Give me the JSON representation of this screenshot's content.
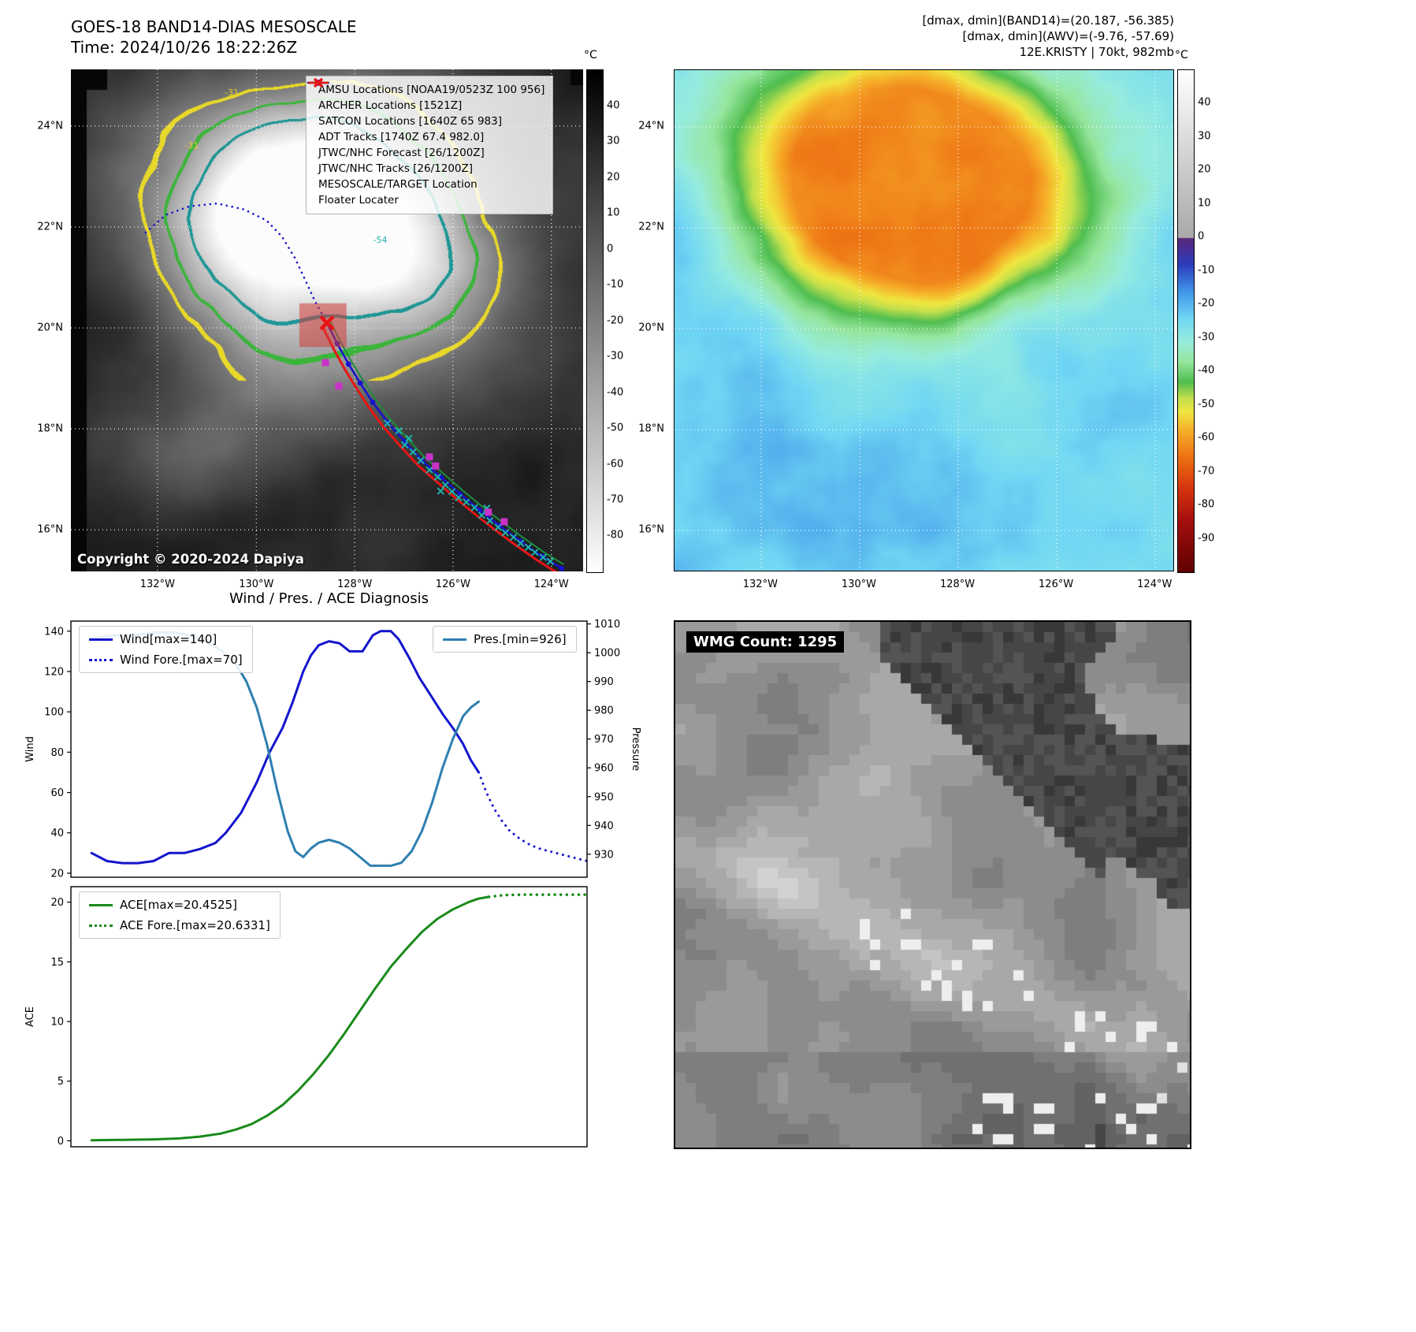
{
  "top_left": {
    "title": "GOES-18 BAND14-DIAS MESOSCALE",
    "subtitle": "Time: 2024/10/26 18:22:26Z",
    "copyright": "Copyright © 2020-2024 Dapiya",
    "colorbar": {
      "unit": "°C",
      "lim": [
        50,
        -90
      ],
      "ticks": [
        40,
        30,
        20,
        10,
        0,
        -10,
        -20,
        -30,
        -40,
        -50,
        -60,
        -70,
        -80
      ]
    },
    "x_ticks": [
      {
        "label": "132°W",
        "f": 0.169
      },
      {
        "label": "130°W",
        "f": 0.362
      },
      {
        "label": "128°W",
        "f": 0.554
      },
      {
        "label": "126°W",
        "f": 0.746
      },
      {
        "label": "124°W",
        "f": 0.938
      }
    ],
    "y_ticks": [
      {
        "label": "24°N",
        "f": 0.113
      },
      {
        "label": "22°N",
        "f": 0.314
      },
      {
        "label": "20°N",
        "f": 0.515
      },
      {
        "label": "18°N",
        "f": 0.716
      },
      {
        "label": "16°N",
        "f": 0.917
      }
    ],
    "legend": [
      {
        "label": "AMSU Locations [NOAA19/0523Z 100 956]",
        "marker": "square",
        "color": "#c832c8"
      },
      {
        "label": "ARCHER Locations [1521Z]",
        "marker": "square",
        "color": "#c832c8"
      },
      {
        "label": "SATCON Locations [1640Z 65 983]",
        "marker": "x",
        "color": "#20b2aa"
      },
      {
        "label": "ADT Tracks [1740Z 67.4 982.0]",
        "marker": "line",
        "color": "#1e8c3c"
      },
      {
        "label": "JTWC/NHC Forecast [26/1200Z]",
        "marker": "dotted",
        "color": "#1414cd"
      },
      {
        "label": "JTWC/NHC Tracks [26/1200Z]",
        "marker": "line-dot",
        "color": "#1414cd"
      },
      {
        "label": "MESOSCALE/TARGET Location",
        "marker": "xmark",
        "color": "#e81414"
      },
      {
        "label": "Floater Locater",
        "marker": "line",
        "color": "#e81414"
      }
    ],
    "contour_labels": [
      {
        "text": "-31",
        "f": [
          0.3,
          0.052
        ],
        "color": "#e0d020"
      },
      {
        "text": "-31",
        "f": [
          0.222,
          0.158
        ],
        "color": "#e0d020"
      },
      {
        "text": "-54",
        "f": [
          0.59,
          0.345
        ],
        "color": "#20b2aa"
      }
    ],
    "tracks": {
      "forecast": [
        [
          0.146,
          0.325
        ],
        [
          0.185,
          0.29
        ],
        [
          0.231,
          0.273
        ],
        [
          0.285,
          0.267
        ],
        [
          0.338,
          0.279
        ],
        [
          0.382,
          0.301
        ],
        [
          0.412,
          0.333
        ],
        [
          0.438,
          0.377
        ],
        [
          0.458,
          0.421
        ],
        [
          0.477,
          0.463
        ],
        [
          0.5,
          0.505
        ]
      ],
      "best_track": [
        [
          0.5,
          0.505
        ],
        [
          0.52,
          0.546
        ],
        [
          0.542,
          0.587
        ],
        [
          0.565,
          0.625
        ],
        [
          0.589,
          0.663
        ],
        [
          0.618,
          0.703
        ],
        [
          0.651,
          0.741
        ],
        [
          0.686,
          0.78
        ],
        [
          0.723,
          0.813
        ],
        [
          0.76,
          0.846
        ],
        [
          0.798,
          0.878
        ],
        [
          0.837,
          0.909
        ],
        [
          0.878,
          0.94
        ],
        [
          0.92,
          0.97
        ],
        [
          0.958,
          0.994
        ]
      ],
      "target": [
        0.5,
        0.505
      ],
      "target_box": [
        0.446,
        0.466,
        0.092,
        0.087
      ],
      "satcon_marks": [
        [
          0.618,
          0.705
        ],
        [
          0.64,
          0.72
        ],
        [
          0.652,
          0.748
        ],
        [
          0.668,
          0.762
        ],
        [
          0.683,
          0.779
        ],
        [
          0.66,
          0.735
        ],
        [
          0.7,
          0.798
        ],
        [
          0.716,
          0.812
        ],
        [
          0.731,
          0.828
        ],
        [
          0.744,
          0.841
        ],
        [
          0.757,
          0.853
        ],
        [
          0.722,
          0.84
        ],
        [
          0.772,
          0.862
        ],
        [
          0.788,
          0.873
        ],
        [
          0.802,
          0.888
        ],
        [
          0.818,
          0.899
        ],
        [
          0.812,
          0.874
        ],
        [
          0.834,
          0.912
        ],
        [
          0.848,
          0.923
        ],
        [
          0.864,
          0.932
        ],
        [
          0.878,
          0.944
        ],
        [
          0.893,
          0.952
        ],
        [
          0.906,
          0.962
        ],
        [
          0.922,
          0.972
        ],
        [
          0.936,
          0.98
        ]
      ],
      "amsu_marks": [
        [
          0.497,
          0.584
        ],
        [
          0.523,
          0.631
        ],
        [
          0.7,
          0.772
        ],
        [
          0.712,
          0.79
        ],
        [
          0.815,
          0.882
        ],
        [
          0.846,
          0.901
        ]
      ]
    }
  },
  "top_right": {
    "header_lines": [
      "[dmax, dmin](BAND14)=(20.187, -56.385)",
      "[dmax, dmin](AWV)=(-9.76, -57.69)",
      "12E.KRISTY | 70kt, 982mb"
    ],
    "colorbar": {
      "unit": "°C",
      "lim": [
        50,
        -100
      ],
      "ticks": [
        40,
        30,
        20,
        10,
        0,
        -10,
        -20,
        -30,
        -40,
        -50,
        -60,
        -70,
        -80,
        -90
      ]
    },
    "x_ticks": [
      {
        "label": "132°W",
        "f": 0.173
      },
      {
        "label": "130°W",
        "f": 0.37
      },
      {
        "label": "128°W",
        "f": 0.567
      },
      {
        "label": "126°W",
        "f": 0.764
      },
      {
        "label": "124°W",
        "f": 0.961
      }
    ],
    "y_ticks": [
      {
        "label": "24°N",
        "f": 0.113
      },
      {
        "label": "22°N",
        "f": 0.314
      },
      {
        "label": "20°N",
        "f": 0.515
      },
      {
        "label": "18°N",
        "f": 0.716
      },
      {
        "label": "16°N",
        "f": 0.917
      }
    ]
  },
  "bottom_left": {
    "title": "Wind / Pres. / ACE Diagnosis"
  },
  "bottom_right": {
    "label": "WMG Count: 1295"
  },
  "colors": {
    "wind": "#1414cd",
    "pressure": "#2e7fb0",
    "ace": "#1a8a1a",
    "floater": "#e81414",
    "adt": "#1e8c3c",
    "satcon": "#20b2aa",
    "amsu": "#c832c8"
  },
  "chart_data": [
    {
      "type": "line",
      "title": "Wind / Pres. / ACE Diagnosis",
      "x_range": [
        0,
        1
      ],
      "axes": {
        "left": {
          "label": "Wind",
          "ticks": [
            20,
            40,
            60,
            80,
            100,
            120,
            140
          ],
          "lim": [
            18,
            145
          ]
        },
        "right": {
          "label": "Pressure",
          "ticks": [
            930,
            940,
            950,
            960,
            970,
            980,
            990,
            1000,
            1010
          ],
          "lim": [
            922,
            1011
          ]
        }
      },
      "series": [
        {
          "name": "Wind[max=140]",
          "axis": "left",
          "style": "solid",
          "color": "#1414cd",
          "width": 3,
          "points": [
            [
              0.04,
              30
            ],
            [
              0.07,
              26
            ],
            [
              0.1,
              25
            ],
            [
              0.13,
              25
            ],
            [
              0.16,
              26
            ],
            [
              0.19,
              30
            ],
            [
              0.22,
              30
            ],
            [
              0.25,
              32
            ],
            [
              0.28,
              35
            ],
            [
              0.3,
              40
            ],
            [
              0.33,
              50
            ],
            [
              0.36,
              65
            ],
            [
              0.385,
              80
            ],
            [
              0.41,
              92
            ],
            [
              0.43,
              105
            ],
            [
              0.45,
              120
            ],
            [
              0.465,
              128
            ],
            [
              0.48,
              133
            ],
            [
              0.5,
              135
            ],
            [
              0.52,
              134
            ],
            [
              0.54,
              130
            ],
            [
              0.565,
              130
            ],
            [
              0.585,
              138
            ],
            [
              0.6,
              140
            ],
            [
              0.62,
              140
            ],
            [
              0.635,
              136
            ],
            [
              0.655,
              127
            ],
            [
              0.675,
              117
            ],
            [
              0.7,
              107
            ],
            [
              0.72,
              99
            ],
            [
              0.74,
              92
            ],
            [
              0.76,
              84
            ],
            [
              0.775,
              76
            ],
            [
              0.79,
              70
            ]
          ]
        },
        {
          "name": "Wind Fore.[max=70]",
          "axis": "left",
          "style": "dotted",
          "color": "#1414cd",
          "width": 3,
          "points": [
            [
              0.79,
              70
            ],
            [
              0.805,
              60
            ],
            [
              0.82,
              52
            ],
            [
              0.835,
              46
            ],
            [
              0.85,
              41
            ],
            [
              0.87,
              37
            ],
            [
              0.89,
              34
            ],
            [
              0.91,
              32
            ],
            [
              0.94,
              30
            ],
            [
              0.97,
              28
            ],
            [
              1.0,
              26
            ]
          ]
        },
        {
          "name": "Pres.[min=926]",
          "axis": "right",
          "style": "solid",
          "color": "#2e7fb0",
          "width": 3,
          "points": [
            [
              0.04,
              1005
            ],
            [
              0.08,
              1006
            ],
            [
              0.12,
              1006
            ],
            [
              0.16,
              1007
            ],
            [
              0.2,
              1007
            ],
            [
              0.23,
              1006
            ],
            [
              0.26,
              1004
            ],
            [
              0.29,
              1001
            ],
            [
              0.32,
              996
            ],
            [
              0.34,
              990
            ],
            [
              0.36,
              981
            ],
            [
              0.38,
              968
            ],
            [
              0.4,
              952
            ],
            [
              0.42,
              938
            ],
            [
              0.435,
              931
            ],
            [
              0.45,
              929
            ],
            [
              0.465,
              932
            ],
            [
              0.48,
              934
            ],
            [
              0.5,
              935
            ],
            [
              0.52,
              934
            ],
            [
              0.54,
              932
            ],
            [
              0.56,
              929
            ],
            [
              0.58,
              926
            ],
            [
              0.6,
              926
            ],
            [
              0.62,
              926
            ],
            [
              0.64,
              927
            ],
            [
              0.66,
              931
            ],
            [
              0.68,
              938
            ],
            [
              0.7,
              948
            ],
            [
              0.72,
              960
            ],
            [
              0.74,
              970
            ],
            [
              0.76,
              978
            ],
            [
              0.775,
              981
            ],
            [
              0.79,
              983
            ]
          ]
        }
      ],
      "legends": [
        {
          "position": "top-left",
          "entries": [
            "Wind[max=140]",
            "Wind Fore.[max=70]"
          ]
        },
        {
          "position": "top-right",
          "entries": [
            "Pres.[min=926]"
          ]
        }
      ]
    },
    {
      "type": "line",
      "title": "",
      "x_range": [
        0,
        1
      ],
      "axes": {
        "left": {
          "label": "ACE",
          "ticks": [
            0,
            5,
            10,
            15,
            20
          ],
          "lim": [
            -0.5,
            21.3
          ]
        }
      },
      "series": [
        {
          "name": "ACE[max=20.4525]",
          "axis": "left",
          "style": "solid",
          "color": "#1a8a1a",
          "width": 3,
          "points": [
            [
              0.04,
              0.05
            ],
            [
              0.1,
              0.08
            ],
            [
              0.16,
              0.12
            ],
            [
              0.21,
              0.2
            ],
            [
              0.25,
              0.35
            ],
            [
              0.29,
              0.6
            ],
            [
              0.32,
              0.95
            ],
            [
              0.35,
              1.4
            ],
            [
              0.38,
              2.1
            ],
            [
              0.41,
              3.0
            ],
            [
              0.44,
              4.2
            ],
            [
              0.47,
              5.6
            ],
            [
              0.5,
              7.2
            ],
            [
              0.53,
              9.0
            ],
            [
              0.56,
              10.9
            ],
            [
              0.59,
              12.8
            ],
            [
              0.62,
              14.6
            ],
            [
              0.65,
              16.1
            ],
            [
              0.68,
              17.5
            ],
            [
              0.71,
              18.6
            ],
            [
              0.74,
              19.4
            ],
            [
              0.77,
              20.0
            ],
            [
              0.79,
              20.3
            ],
            [
              0.81,
              20.45
            ]
          ]
        },
        {
          "name": "ACE Fore.[max=20.6331]",
          "axis": "left",
          "style": "dotted",
          "color": "#1a8a1a",
          "width": 3.5,
          "points": [
            [
              0.81,
              20.45
            ],
            [
              0.84,
              20.6
            ],
            [
              0.88,
              20.63
            ],
            [
              0.92,
              20.63
            ],
            [
              0.96,
              20.63
            ],
            [
              1.0,
              20.63
            ]
          ]
        }
      ],
      "legends": [
        {
          "position": "top-left",
          "entries": [
            "ACE[max=20.4525]",
            "ACE Fore.[max=20.6331]"
          ]
        }
      ]
    }
  ]
}
